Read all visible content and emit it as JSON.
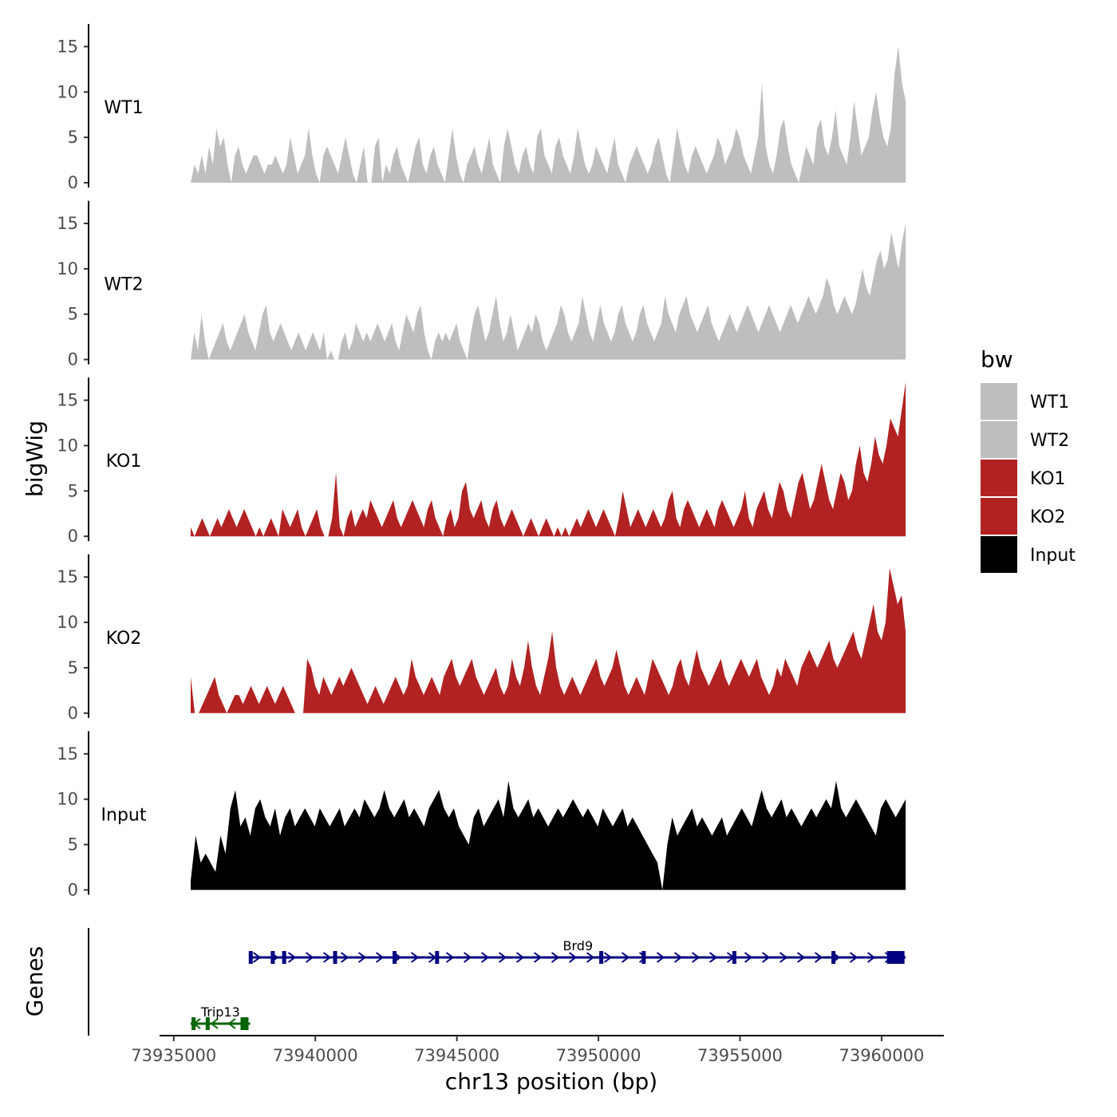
{
  "chart_data": {
    "type": "area",
    "title": "",
    "xlabel": "chr13 position (bp)",
    "ylabel": "bigWig",
    "genes_panel_label": "Genes",
    "xlim": [
      73934500,
      73962200
    ],
    "ylim": [
      0,
      17.5
    ],
    "y_ticks": [
      0,
      5,
      10,
      15
    ],
    "x_ticks": [
      73935000,
      73940000,
      73945000,
      73950000,
      73955000,
      73960000
    ],
    "x_tick_labels": [
      "73935000",
      "73940000",
      "73945000",
      "73950000",
      "73955000",
      "73960000"
    ],
    "data_range": [
      73935600,
      73960850
    ],
    "legend": {
      "title": "bw",
      "position": "right",
      "entries": [
        {
          "label": "WT1",
          "color": "#bebebe"
        },
        {
          "label": "WT2",
          "color": "#bebebe"
        },
        {
          "label": "KO1",
          "color": "#b22222"
        },
        {
          "label": "KO2",
          "color": "#b22222"
        },
        {
          "label": "Input",
          "color": "#000000"
        }
      ]
    },
    "tracks": [
      {
        "name": "WT1",
        "color": "#bebebe",
        "values": [
          0,
          2,
          1,
          3,
          1,
          4,
          2,
          6,
          4,
          5,
          2,
          0,
          3,
          4,
          2,
          1,
          2,
          3,
          3,
          2,
          1,
          2,
          2,
          3,
          2,
          1,
          2,
          5,
          3,
          1,
          2,
          3,
          6,
          3,
          1,
          0,
          3,
          4,
          3,
          2,
          1,
          3,
          5,
          3,
          1,
          0,
          2,
          4,
          0,
          0,
          4,
          5,
          0,
          2,
          1,
          3,
          4,
          2,
          1,
          0,
          2,
          4,
          5,
          2,
          1,
          3,
          4,
          2,
          1,
          0,
          3,
          6,
          3,
          1,
          0,
          2,
          3,
          4,
          2,
          1,
          3,
          5,
          2,
          1,
          0,
          4,
          6,
          4,
          2,
          1,
          3,
          4,
          2,
          1,
          5,
          6,
          3,
          2,
          1,
          4,
          5,
          3,
          2,
          1,
          3,
          6,
          4,
          2,
          1,
          2,
          4,
          3,
          2,
          1,
          3,
          5,
          2,
          1,
          0,
          2,
          3,
          4,
          3,
          2,
          1,
          2,
          4,
          5,
          3,
          1,
          0,
          3,
          6,
          4,
          2,
          1,
          3,
          4,
          3,
          2,
          1,
          2,
          3,
          5,
          4,
          2,
          3,
          4,
          6,
          5,
          3,
          2,
          1,
          3,
          5,
          11,
          4,
          2,
          1,
          3,
          6,
          7,
          4,
          2,
          1,
          0,
          2,
          4,
          3,
          2,
          6,
          7,
          4,
          3,
          5,
          8,
          4,
          3,
          2,
          5,
          9,
          6,
          3,
          4,
          5,
          8,
          10,
          7,
          5,
          4,
          6,
          12,
          15,
          11,
          9
        ]
      },
      {
        "name": "WT2",
        "color": "#bebebe",
        "values": [
          0,
          3,
          1,
          5,
          2,
          0,
          1,
          2,
          3,
          4,
          2,
          1,
          2,
          3,
          4,
          5,
          3,
          2,
          1,
          3,
          5,
          6,
          3,
          2,
          3,
          4,
          3,
          2,
          1,
          2,
          3,
          2,
          1,
          2,
          3,
          2,
          1,
          3,
          0,
          1,
          0,
          0,
          2,
          3,
          1,
          2,
          4,
          3,
          2,
          3,
          2,
          3,
          4,
          3,
          2,
          3,
          4,
          2,
          1,
          3,
          5,
          4,
          3,
          5,
          6,
          3,
          1,
          0,
          2,
          3,
          2,
          3,
          2,
          3,
          4,
          2,
          1,
          0,
          3,
          5,
          6,
          4,
          2,
          3,
          5,
          7,
          4,
          2,
          3,
          5,
          3,
          1,
          2,
          3,
          4,
          3,
          5,
          4,
          2,
          1,
          2,
          3,
          4,
          6,
          5,
          3,
          2,
          3,
          4,
          7,
          5,
          3,
          2,
          4,
          6,
          4,
          3,
          2,
          3,
          5,
          6,
          4,
          3,
          2,
          3,
          5,
          6,
          4,
          3,
          2,
          3,
          4,
          7,
          5,
          4,
          3,
          5,
          6,
          7,
          5,
          4,
          3,
          4,
          5,
          6,
          4,
          3,
          2,
          3,
          4,
          5,
          4,
          3,
          4,
          5,
          6,
          5,
          4,
          3,
          4,
          5,
          6,
          5,
          4,
          3,
          4,
          5,
          6,
          5,
          4,
          5,
          6,
          7,
          6,
          5,
          6,
          7,
          9,
          8,
          6,
          5,
          6,
          7,
          6,
          5,
          6,
          8,
          10,
          8,
          7,
          9,
          11,
          12,
          10,
          11,
          14,
          12,
          10,
          13,
          15
        ]
      },
      {
        "name": "KO1",
        "color": "#b22222",
        "values": [
          1,
          0,
          1,
          2,
          1,
          0,
          1,
          2,
          1,
          2,
          3,
          2,
          1,
          2,
          3,
          2,
          1,
          0,
          1,
          0,
          1,
          2,
          1,
          0,
          3,
          2,
          1,
          2,
          3,
          1,
          0,
          1,
          2,
          3,
          1,
          0,
          0,
          2,
          7,
          1,
          0,
          2,
          3,
          1,
          2,
          3,
          2,
          4,
          3,
          2,
          1,
          2,
          3,
          4,
          2,
          1,
          2,
          3,
          4,
          3,
          2,
          1,
          3,
          4,
          2,
          1,
          0,
          2,
          3,
          1,
          2,
          5,
          6,
          3,
          2,
          3,
          4,
          2,
          1,
          3,
          4,
          2,
          1,
          2,
          3,
          2,
          1,
          0,
          1,
          2,
          1,
          0,
          1,
          2,
          1,
          0,
          1,
          0,
          1,
          0,
          1,
          2,
          1,
          2,
          3,
          2,
          1,
          2,
          3,
          2,
          1,
          0,
          2,
          5,
          3,
          1,
          2,
          3,
          2,
          1,
          2,
          3,
          2,
          1,
          2,
          4,
          5,
          2,
          1,
          3,
          4,
          3,
          2,
          1,
          2,
          3,
          2,
          1,
          3,
          4,
          3,
          2,
          1,
          2,
          3,
          5,
          2,
          1,
          3,
          4,
          5,
          3,
          2,
          4,
          6,
          5,
          3,
          2,
          4,
          6,
          7,
          5,
          3,
          4,
          6,
          8,
          6,
          4,
          3,
          5,
          7,
          6,
          4,
          5,
          8,
          10,
          7,
          6,
          8,
          11,
          9,
          8,
          10,
          13,
          12,
          11,
          14,
          17
        ]
      },
      {
        "name": "KO2",
        "color": "#b22222",
        "values": [
          4,
          0,
          0,
          1,
          2,
          3,
          4,
          2,
          1,
          0,
          1,
          2,
          2,
          1,
          2,
          3,
          2,
          1,
          2,
          3,
          2,
          1,
          2,
          3,
          2,
          1,
          0,
          0,
          0,
          6,
          5,
          3,
          2,
          4,
          3,
          2,
          3,
          4,
          3,
          4,
          5,
          4,
          3,
          2,
          1,
          2,
          3,
          2,
          1,
          2,
          3,
          4,
          3,
          2,
          3,
          6,
          4,
          3,
          2,
          3,
          4,
          3,
          2,
          4,
          5,
          6,
          4,
          3,
          4,
          5,
          6,
          4,
          3,
          2,
          3,
          4,
          5,
          3,
          2,
          3,
          6,
          4,
          3,
          5,
          8,
          5,
          3,
          2,
          4,
          6,
          9,
          5,
          3,
          2,
          3,
          4,
          3,
          2,
          3,
          4,
          5,
          6,
          4,
          3,
          4,
          5,
          7,
          5,
          3,
          2,
          3,
          4,
          3,
          2,
          4,
          6,
          5,
          4,
          3,
          2,
          3,
          5,
          6,
          4,
          3,
          5,
          7,
          5,
          4,
          3,
          4,
          5,
          6,
          4,
          3,
          4,
          5,
          6,
          5,
          4,
          5,
          6,
          4,
          3,
          2,
          3,
          5,
          4,
          6,
          5,
          4,
          3,
          5,
          6,
          7,
          6,
          5,
          6,
          7,
          8,
          6,
          5,
          6,
          7,
          8,
          9,
          7,
          6,
          8,
          10,
          12,
          9,
          8,
          10,
          16,
          14,
          12,
          13,
          9
        ]
      },
      {
        "name": "Input",
        "color": "#000000",
        "values": [
          1,
          6,
          3,
          4,
          3,
          2,
          6,
          4,
          9,
          11,
          7,
          8,
          6,
          9,
          10,
          8,
          7,
          9,
          6,
          8,
          9,
          7,
          8,
          9,
          8,
          7,
          9,
          8,
          7,
          8,
          9,
          7,
          8,
          9,
          8,
          10,
          9,
          8,
          9,
          11,
          9,
          8,
          9,
          10,
          8,
          9,
          8,
          7,
          9,
          10,
          11,
          9,
          8,
          9,
          7,
          6,
          5,
          8,
          9,
          7,
          8,
          9,
          10,
          8,
          12,
          9,
          8,
          9,
          10,
          8,
          9,
          8,
          7,
          8,
          9,
          8,
          9,
          10,
          9,
          8,
          9,
          8,
          7,
          9,
          8,
          7,
          8,
          9,
          7,
          8,
          7,
          6,
          5,
          4,
          3,
          0,
          5,
          8,
          6,
          7,
          8,
          9,
          7,
          8,
          7,
          6,
          7,
          8,
          6,
          7,
          8,
          9,
          8,
          7,
          9,
          11,
          9,
          8,
          9,
          10,
          8,
          9,
          8,
          7,
          8,
          9,
          8,
          9,
          10,
          9,
          12,
          9,
          8,
          9,
          10,
          9,
          8,
          7,
          6,
          9,
          10,
          9,
          8,
          9,
          10
        ]
      }
    ],
    "genes": [
      {
        "name": "Brd9",
        "color": "#000080",
        "strand": "+",
        "start": 73937700,
        "end": 73960850,
        "exons": [
          73937720,
          73938500,
          73938900,
          73940700,
          73942800,
          73944300,
          73950100,
          73951600,
          73954800,
          73958300,
          73960500
        ]
      },
      {
        "name": "Trip13",
        "color": "#006400",
        "strand": "-",
        "start": 73935600,
        "end": 73937700,
        "exons": [
          73935700,
          73936200,
          73937500
        ]
      }
    ]
  }
}
